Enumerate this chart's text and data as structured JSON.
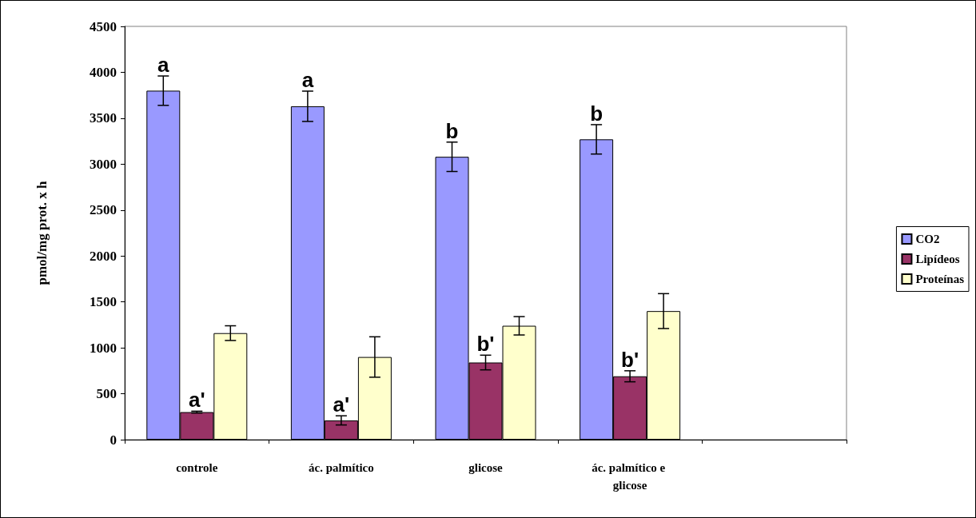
{
  "chart_data": {
    "type": "bar",
    "ylabel": "pmol/mg prot. x h",
    "categories": [
      "controle",
      "ác. palmítico",
      "glicose",
      "ác. palmítico e glicose",
      null
    ],
    "series": [
      {
        "name": "CO2",
        "color": "#9999ff",
        "values": [
          3800,
          3630,
          3080,
          3270,
          null
        ],
        "errors": [
          160,
          165,
          160,
          160,
          null
        ]
      },
      {
        "name": "Lipídeos",
        "color": "#993366",
        "values": [
          300,
          210,
          840,
          690,
          null
        ],
        "errors": [
          10,
          50,
          80,
          60,
          null
        ]
      },
      {
        "name": "Proteínas",
        "color": "#ffffcc",
        "values": [
          1160,
          900,
          1240,
          1400,
          null
        ],
        "errors": [
          80,
          220,
          100,
          190,
          null
        ]
      }
    ],
    "ylim": [
      0,
      4500
    ],
    "yticks": [
      0,
      500,
      1000,
      1500,
      2000,
      2500,
      3000,
      3500,
      4000,
      4500
    ],
    "grid": false,
    "legend": "right",
    "annotations": [
      "a",
      "a",
      "b",
      "b",
      {
        "text": "a'",
        "x": "controle",
        "y": 300
      },
      {
        "text": "a'",
        "x": "ác. palmítico",
        "y": 210
      },
      {
        "text": "b'",
        "x": "glicose",
        "y": 840
      },
      {
        "text": "b'",
        "x": "ác. palmítico e glicose",
        "y": 690
      }
    ]
  }
}
